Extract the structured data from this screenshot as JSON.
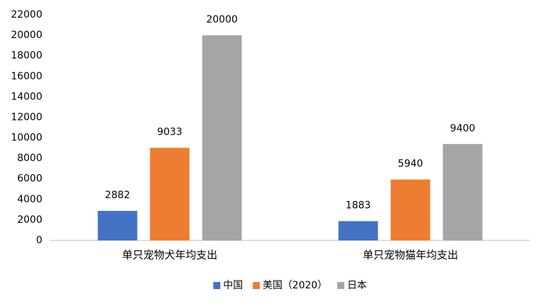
{
  "chart_data": {
    "type": "bar",
    "categories": [
      "单只宠物犬年均支出",
      "单只宠物猫年均支出"
    ],
    "series": [
      {
        "name": "中国",
        "color": "#4472c4",
        "values": [
          2882,
          1883
        ]
      },
      {
        "name": "美国（2020）",
        "color": "#ed7d31",
        "values": [
          9033,
          5940
        ]
      },
      {
        "name": "日本",
        "color": "#a5a5a5",
        "values": [
          20000,
          9400
        ]
      }
    ],
    "ylim": [
      0,
      22000
    ],
    "yticks": [
      0,
      2000,
      4000,
      6000,
      8000,
      10000,
      12000,
      14000,
      16000,
      18000,
      20000,
      22000
    ],
    "grid": false,
    "legend": "bottom"
  }
}
